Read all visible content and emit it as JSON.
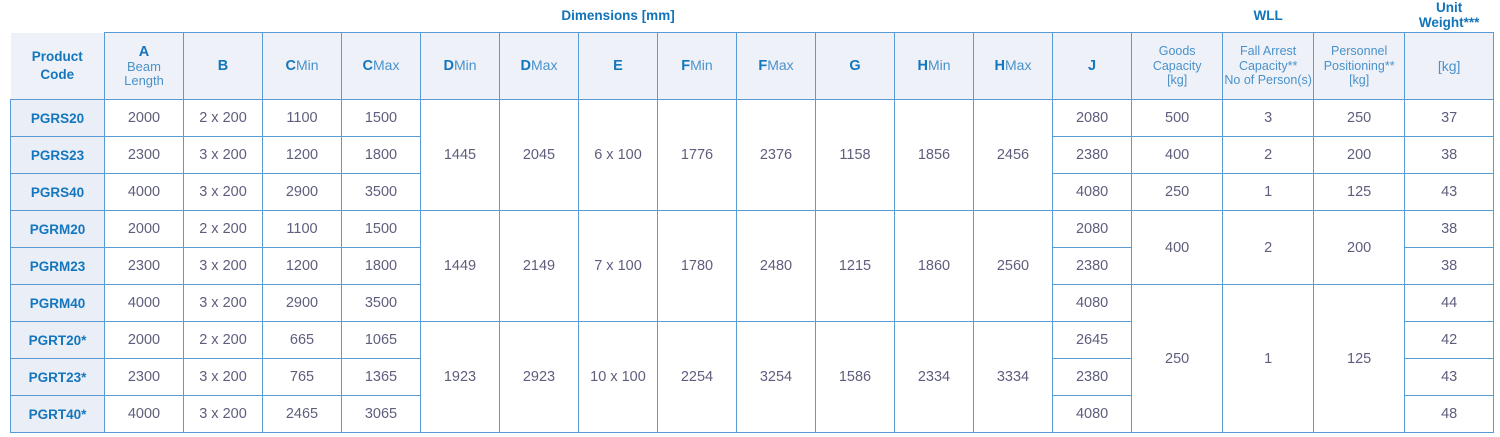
{
  "colors": {
    "accent_blue": "#1476bc",
    "light_blue": "#4a92ca",
    "border_blue": "#5b9bd5",
    "data_text": "#5e5e7d",
    "header_bg": "#eef1f8",
    "code_cell_bg": "#e9eef7"
  },
  "table": {
    "title_dimensions": "Dimensions [mm]",
    "title_wll": "WLL",
    "title_unit_weight": "Unit Weight***",
    "col_headers": {
      "product": [
        "Product",
        "Code"
      ],
      "a_letter": "A",
      "a_sub": [
        "Beam",
        "Length"
      ],
      "b": "B",
      "c": "C",
      "d": "D",
      "e": "E",
      "f": "F",
      "g": "G",
      "h": "H",
      "j": "J",
      "min": "Min",
      "max": "Max",
      "goods": [
        "Goods",
        "Capacity",
        "[kg]"
      ],
      "fall_arrest": [
        "Fall Arrest",
        "Capacity**",
        "No of Person(s)"
      ],
      "personnel": [
        "Personnel",
        "Positioning**",
        "[kg]"
      ],
      "kg": "[kg]"
    },
    "groups": [
      {
        "dmin": "1445",
        "dmax": "2045",
        "e": "6 x 100",
        "fmin": "1776",
        "fmax": "2376",
        "g": "1158",
        "hmin": "1856",
        "hmax": "2456"
      },
      {
        "dmin": "1449",
        "dmax": "2149",
        "e": "7 x 100",
        "fmin": "1780",
        "fmax": "2480",
        "g": "1215",
        "hmin": "1860",
        "hmax": "2560"
      },
      {
        "dmin": "1923",
        "dmax": "2923",
        "e": "10 x 100",
        "fmin": "2254",
        "fmax": "3254",
        "g": "1586",
        "hmin": "2334",
        "hmax": "3334"
      }
    ],
    "rows": [
      {
        "code": "PGRS20",
        "a": "2000",
        "b": "2 x 200",
        "cmin": "1100",
        "cmax": "1500",
        "j": "2080",
        "goods": "500",
        "fall": "3",
        "pers": "250",
        "kg": "37"
      },
      {
        "code": "PGRS23",
        "a": "2300",
        "b": "3 x 200",
        "cmin": "1200",
        "cmax": "1800",
        "j": "2380",
        "goods": "400",
        "fall": "2",
        "pers": "200",
        "kg": "38"
      },
      {
        "code": "PGRS40",
        "a": "4000",
        "b": "3 x 200",
        "cmin": "2900",
        "cmax": "3500",
        "j": "4080",
        "goods": "250",
        "fall": "1",
        "pers": "125",
        "kg": "43"
      },
      {
        "code": "PGRM20",
        "a": "2000",
        "b": "2 x 200",
        "cmin": "1100",
        "cmax": "1500",
        "j": "2080",
        "goods": "400",
        "fall": "2",
        "pers": "200",
        "kg": "38"
      },
      {
        "code": "PGRM23",
        "a": "2300",
        "b": "3 x 200",
        "cmin": "1200",
        "cmax": "1800",
        "j": "2380",
        "kg": "38"
      },
      {
        "code": "PGRM40",
        "a": "4000",
        "b": "3 x 200",
        "cmin": "2900",
        "cmax": "3500",
        "j": "4080",
        "goods": "250",
        "fall": "1",
        "pers": "125",
        "kg": "44"
      },
      {
        "code": "PGRT20*",
        "a": "2000",
        "b": "2 x 200",
        "cmin": "665",
        "cmax": "1065",
        "j": "2645",
        "kg": "42"
      },
      {
        "code": "PGRT23*",
        "a": "2300",
        "b": "3 x 200",
        "cmin": "765",
        "cmax": "1365",
        "j": "2380",
        "kg": "43"
      },
      {
        "code": "PGRT40*",
        "a": "4000",
        "b": "3 x 200",
        "cmin": "2465",
        "cmax": "3065",
        "j": "4080",
        "kg": "48"
      }
    ]
  }
}
